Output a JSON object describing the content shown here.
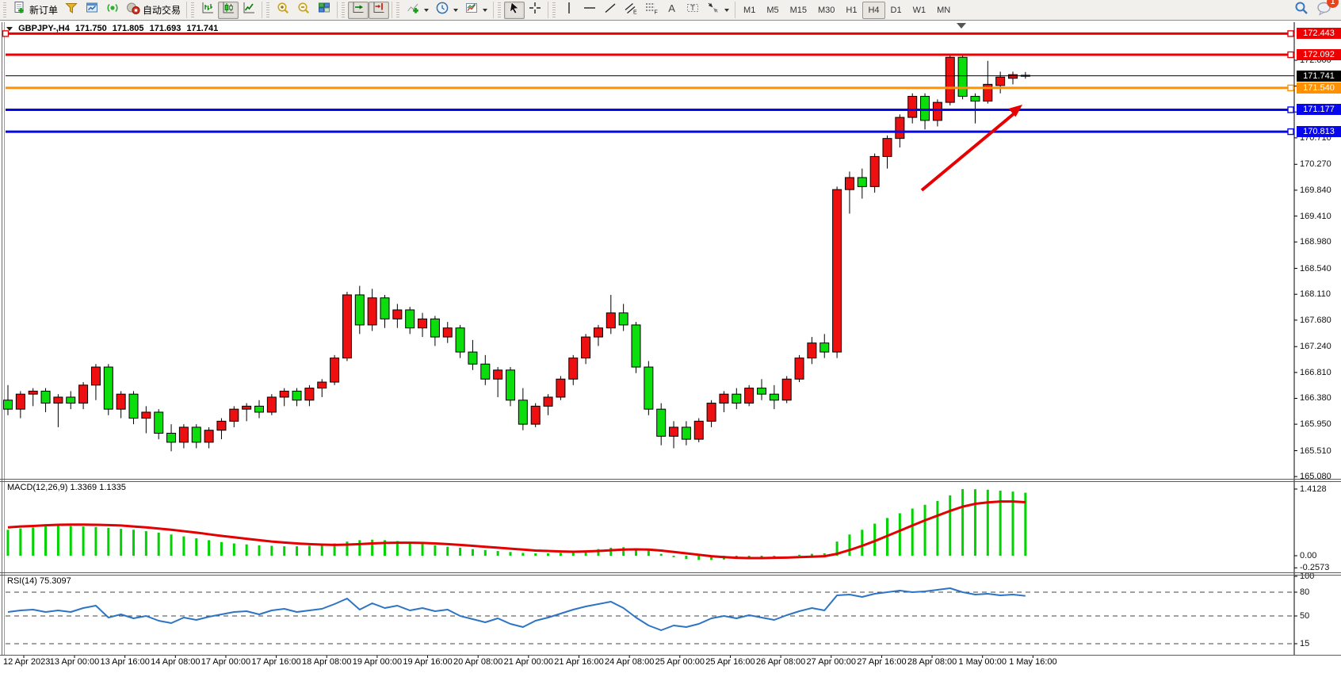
{
  "toolbar": {
    "groups": [
      [
        {
          "name": "new-order",
          "label": "新订单"
        },
        {
          "name": "funnel"
        },
        {
          "name": "chart-window"
        },
        {
          "name": "signal"
        },
        {
          "name": "autotrading",
          "label": "自动交易"
        }
      ],
      [
        {
          "name": "bar-chart"
        },
        {
          "name": "candlestick",
          "active": true
        },
        {
          "name": "line-chart"
        }
      ],
      [
        {
          "name": "zoom-in"
        },
        {
          "name": "zoom-out"
        },
        {
          "name": "tile-windows"
        }
      ],
      [
        {
          "name": "auto-scroll",
          "active": true
        },
        {
          "name": "chart-shift",
          "active": true
        }
      ],
      [
        {
          "name": "indicators",
          "caret": true
        },
        {
          "name": "periods",
          "caret": true
        },
        {
          "name": "templates",
          "caret": true
        }
      ],
      [
        {
          "name": "cursor",
          "active": true
        },
        {
          "name": "crosshair"
        }
      ],
      [
        {
          "name": "vertical-line"
        },
        {
          "name": "horizontal-line"
        },
        {
          "name": "trendline"
        },
        {
          "name": "equidistant-channel"
        },
        {
          "name": "fibonacci"
        },
        {
          "name": "text"
        },
        {
          "name": "text-label"
        },
        {
          "name": "shapes",
          "caret": true
        }
      ]
    ],
    "timeframes": [
      "M1",
      "M5",
      "M15",
      "M30",
      "H1",
      "H4",
      "D1",
      "W1",
      "MN"
    ],
    "active_timeframe": "H4",
    "notification_count": "1"
  },
  "chart": {
    "title": {
      "symbol_period": "GBPJPY-,H4",
      "open": "171.750",
      "high": "171.805",
      "low": "171.693",
      "close": "171.741"
    }
  },
  "indicators": {
    "macd": {
      "label": "MACD(12,26,9)",
      "value_main": "1.3369",
      "value_signal": "1.1335",
      "axis_labels": [
        "1.4128",
        "0.00",
        "-0.2573"
      ]
    },
    "rsi": {
      "label": "RSI(14)",
      "value": "75.3097",
      "axis_labels": [
        "100",
        "80",
        "50",
        "15"
      ],
      "levels": [
        80,
        50,
        15
      ]
    }
  },
  "chart_data": {
    "type": "candlestick",
    "symbol": "GBPJPY-",
    "period": "H4",
    "up_color": "#ee1010",
    "down_color": "#0cdd0c",
    "price_ticks": [
      172.0,
      171.57,
      171.14,
      170.71,
      170.27,
      169.84,
      169.41,
      168.98,
      168.54,
      168.11,
      167.68,
      167.24,
      166.81,
      166.38,
      165.95,
      165.51,
      165.08
    ],
    "time_labels": [
      "12 Apr 2023",
      "13 Apr 00:00",
      "13 Apr 16:00",
      "14 Apr 08:00",
      "17 Apr 00:00",
      "17 Apr 16:00",
      "18 Apr 08:00",
      "19 Apr 00:00",
      "19 Apr 16:00",
      "20 Apr 08:00",
      "21 Apr 00:00",
      "21 Apr 16:00",
      "24 Apr 08:00",
      "25 Apr 00:00",
      "25 Apr 16:00",
      "26 Apr 08:00",
      "27 Apr 00:00",
      "27 Apr 16:00",
      "28 Apr 08:00",
      "1 May 00:00",
      "1 May 16:00"
    ],
    "levels": [
      {
        "label": "172.443",
        "price": 172.443,
        "color": "#ee0000",
        "width": 3,
        "anchor_left": true
      },
      {
        "label": "172.092",
        "price": 172.092,
        "color": "#ee0000",
        "width": 3
      },
      {
        "label": "171.741",
        "price": 171.741,
        "color": "#000000",
        "width": 1,
        "bid": true
      },
      {
        "label": "171.540",
        "price": 171.54,
        "color": "#ff9000",
        "width": 3
      },
      {
        "label": "171.177",
        "price": 171.177,
        "color": "#0707ee",
        "width": 3
      },
      {
        "label": "170.813",
        "price": 170.813,
        "color": "#0707ee",
        "width": 3
      }
    ],
    "candles": [
      [
        166.35,
        166.6,
        166.1,
        166.2
      ],
      [
        166.2,
        166.5,
        166.05,
        166.45
      ],
      [
        166.45,
        166.55,
        166.25,
        166.5
      ],
      [
        166.5,
        166.55,
        166.15,
        166.3
      ],
      [
        166.3,
        166.45,
        165.9,
        166.4
      ],
      [
        166.4,
        166.5,
        166.2,
        166.3
      ],
      [
        166.3,
        166.65,
        166.2,
        166.6
      ],
      [
        166.6,
        166.95,
        166.35,
        166.9
      ],
      [
        166.9,
        166.95,
        166.1,
        166.2
      ],
      [
        166.2,
        166.5,
        166.05,
        166.45
      ],
      [
        166.45,
        166.5,
        165.95,
        166.05
      ],
      [
        166.05,
        166.25,
        165.8,
        166.15
      ],
      [
        166.15,
        166.2,
        165.7,
        165.8
      ],
      [
        165.8,
        165.95,
        165.5,
        165.65
      ],
      [
        165.65,
        165.95,
        165.55,
        165.9
      ],
      [
        165.9,
        165.95,
        165.55,
        165.65
      ],
      [
        165.65,
        165.9,
        165.55,
        165.85
      ],
      [
        165.85,
        166.05,
        165.7,
        166.0
      ],
      [
        166.0,
        166.25,
        165.9,
        166.2
      ],
      [
        166.2,
        166.3,
        166.0,
        166.25
      ],
      [
        166.25,
        166.35,
        166.05,
        166.15
      ],
      [
        166.15,
        166.45,
        166.1,
        166.4
      ],
      [
        166.4,
        166.55,
        166.25,
        166.5
      ],
      [
        166.5,
        166.55,
        166.25,
        166.35
      ],
      [
        166.35,
        166.6,
        166.25,
        166.55
      ],
      [
        166.55,
        166.7,
        166.4,
        166.65
      ],
      [
        166.65,
        167.1,
        166.6,
        167.05
      ],
      [
        167.05,
        168.15,
        167.0,
        168.1
      ],
      [
        168.1,
        168.25,
        167.45,
        167.6
      ],
      [
        167.6,
        168.2,
        167.5,
        168.05
      ],
      [
        168.05,
        168.1,
        167.55,
        167.7
      ],
      [
        167.7,
        167.95,
        167.55,
        167.85
      ],
      [
        167.85,
        167.9,
        167.45,
        167.55
      ],
      [
        167.55,
        167.8,
        167.4,
        167.7
      ],
      [
        167.7,
        167.75,
        167.25,
        167.4
      ],
      [
        167.4,
        167.65,
        167.3,
        167.55
      ],
      [
        167.55,
        167.6,
        167.05,
        167.15
      ],
      [
        167.15,
        167.35,
        166.85,
        166.95
      ],
      [
        166.95,
        167.1,
        166.6,
        166.7
      ],
      [
        166.7,
        166.9,
        166.4,
        166.85
      ],
      [
        166.85,
        166.9,
        166.25,
        166.35
      ],
      [
        166.35,
        166.55,
        165.85,
        165.95
      ],
      [
        165.95,
        166.3,
        165.9,
        166.25
      ],
      [
        166.25,
        166.45,
        166.1,
        166.4
      ],
      [
        166.4,
        166.75,
        166.35,
        166.7
      ],
      [
        166.7,
        167.1,
        166.6,
        167.05
      ],
      [
        167.05,
        167.45,
        166.95,
        167.4
      ],
      [
        167.4,
        167.6,
        167.25,
        167.55
      ],
      [
        167.55,
        168.1,
        167.45,
        167.8
      ],
      [
        167.8,
        167.95,
        167.5,
        167.6
      ],
      [
        167.6,
        167.65,
        166.8,
        166.9
      ],
      [
        166.9,
        167.0,
        166.1,
        166.2
      ],
      [
        166.2,
        166.3,
        165.6,
        165.75
      ],
      [
        165.75,
        166.0,
        165.55,
        165.9
      ],
      [
        165.9,
        166.0,
        165.6,
        165.7
      ],
      [
        165.7,
        166.05,
        165.65,
        166.0
      ],
      [
        166.0,
        166.35,
        165.9,
        166.3
      ],
      [
        166.3,
        166.5,
        166.15,
        166.45
      ],
      [
        166.45,
        166.55,
        166.2,
        166.3
      ],
      [
        166.3,
        166.6,
        166.25,
        166.55
      ],
      [
        166.55,
        166.7,
        166.35,
        166.45
      ],
      [
        166.45,
        166.6,
        166.2,
        166.35
      ],
      [
        166.35,
        166.75,
        166.3,
        166.7
      ],
      [
        166.7,
        167.1,
        166.65,
        167.05
      ],
      [
        167.05,
        167.4,
        166.95,
        167.3
      ],
      [
        167.3,
        167.45,
        167.05,
        167.15
      ],
      [
        167.15,
        169.9,
        167.05,
        169.85
      ],
      [
        169.85,
        170.15,
        169.45,
        170.05
      ],
      [
        170.05,
        170.2,
        169.7,
        169.9
      ],
      [
        169.9,
        170.45,
        169.8,
        170.4
      ],
      [
        170.4,
        170.75,
        170.2,
        170.7
      ],
      [
        170.7,
        171.1,
        170.55,
        171.05
      ],
      [
        171.05,
        171.45,
        170.95,
        171.4
      ],
      [
        171.4,
        171.45,
        170.85,
        171.0
      ],
      [
        171.0,
        171.35,
        170.9,
        171.3
      ],
      [
        171.3,
        172.09,
        171.25,
        172.05
      ],
      [
        172.05,
        172.09,
        171.35,
        171.4
      ],
      [
        171.4,
        171.45,
        170.95,
        171.32
      ],
      [
        171.32,
        171.99,
        171.28,
        171.6
      ],
      [
        171.58,
        171.81,
        171.45,
        171.72
      ],
      [
        171.7,
        171.81,
        171.6,
        171.76
      ],
      [
        171.75,
        171.805,
        171.693,
        171.741
      ]
    ],
    "macd": {
      "histogram": [
        0.55,
        0.58,
        0.6,
        0.62,
        0.63,
        0.63,
        0.62,
        0.61,
        0.59,
        0.57,
        0.55,
        0.52,
        0.49,
        0.45,
        0.41,
        0.37,
        0.33,
        0.29,
        0.26,
        0.24,
        0.22,
        0.21,
        0.2,
        0.2,
        0.21,
        0.23,
        0.26,
        0.3,
        0.33,
        0.34,
        0.33,
        0.31,
        0.28,
        0.25,
        0.22,
        0.19,
        0.17,
        0.14,
        0.12,
        0.1,
        0.08,
        0.06,
        0.05,
        0.05,
        0.06,
        0.08,
        0.11,
        0.14,
        0.17,
        0.18,
        0.16,
        0.11,
        0.04,
        -0.03,
        -0.07,
        -0.09,
        -0.09,
        -0.08,
        -0.06,
        -0.04,
        -0.03,
        -0.02,
        0.0,
        0.02,
        0.04,
        0.05,
        0.3,
        0.45,
        0.55,
        0.68,
        0.8,
        0.9,
        1.0,
        1.08,
        1.16,
        1.28,
        1.4128,
        1.41,
        1.4,
        1.38,
        1.36,
        1.3369
      ],
      "signal": [
        0.6,
        0.62,
        0.63,
        0.645,
        0.655,
        0.66,
        0.66,
        0.655,
        0.65,
        0.64,
        0.62,
        0.6,
        0.575,
        0.55,
        0.52,
        0.49,
        0.455,
        0.42,
        0.39,
        0.36,
        0.33,
        0.3,
        0.28,
        0.26,
        0.245,
        0.235,
        0.23,
        0.235,
        0.245,
        0.26,
        0.27,
        0.275,
        0.275,
        0.27,
        0.26,
        0.245,
        0.23,
        0.21,
        0.19,
        0.17,
        0.15,
        0.13,
        0.11,
        0.1,
        0.09,
        0.085,
        0.09,
        0.1,
        0.115,
        0.13,
        0.135,
        0.13,
        0.11,
        0.08,
        0.05,
        0.02,
        -0.01,
        -0.03,
        -0.045,
        -0.05,
        -0.05,
        -0.045,
        -0.04,
        -0.03,
        -0.02,
        -0.01,
        0.04,
        0.12,
        0.21,
        0.31,
        0.42,
        0.53,
        0.64,
        0.75,
        0.85,
        0.95,
        1.04,
        1.1,
        1.13,
        1.15,
        1.15,
        1.1335
      ],
      "axis_max": 1.4128,
      "axis_zero": "0.00",
      "axis_min": -0.2573,
      "histogram_color": "#00d300",
      "signal_color": "#e20000"
    },
    "rsi": {
      "values": [
        55,
        57,
        58,
        55,
        57,
        55,
        60,
        63,
        48,
        52,
        47,
        50,
        44,
        41,
        48,
        45,
        49,
        52,
        55,
        56,
        52,
        57,
        59,
        55,
        57,
        59,
        65,
        72,
        58,
        66,
        60,
        63,
        57,
        60,
        56,
        58,
        50,
        46,
        42,
        47,
        40,
        36,
        44,
        48,
        53,
        58,
        62,
        65,
        68,
        60,
        48,
        38,
        32,
        38,
        36,
        40,
        47,
        50,
        47,
        51,
        48,
        45,
        51,
        56,
        60,
        57,
        76,
        77,
        74,
        78,
        80,
        82,
        80,
        81,
        83,
        85,
        80,
        77,
        78,
        76,
        77,
        75.31
      ],
      "line_color": "#2d74c4"
    },
    "annotations": [
      {
        "type": "arrow",
        "color": "#e80000",
        "direction": "up-right"
      }
    ]
  }
}
